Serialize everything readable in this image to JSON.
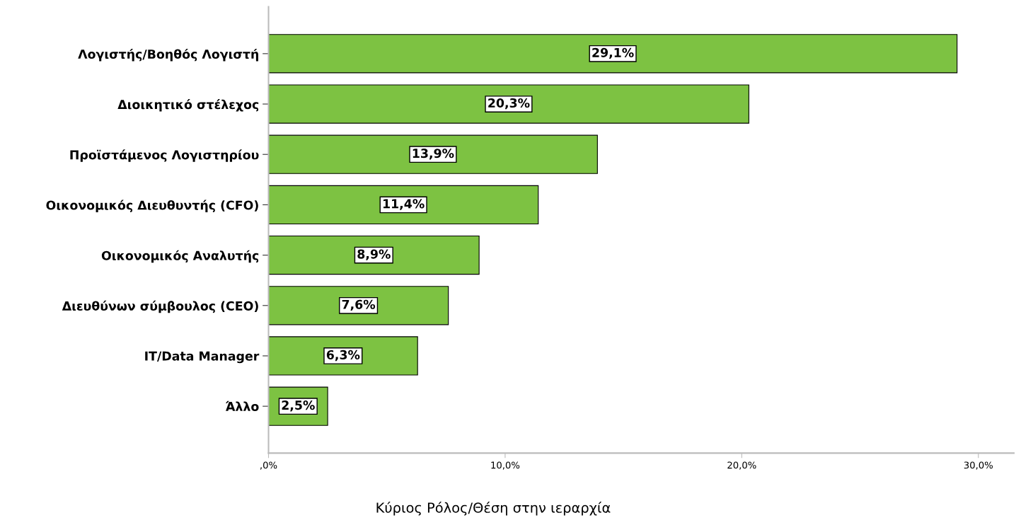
{
  "chart_data": {
    "type": "bar",
    "orientation": "horizontal",
    "xlabel": "Κύριος Ρόλος/Θέση στην ιεραρχία",
    "categories": [
      "Λογιστής/Βοηθός Λογιστή",
      "Διοικητικό στέλεχος",
      "Προϊστάμενος Λογιστηρίου",
      "Οικονομικός Διευθυντής (CFO)",
      "Οικονομικός Αναλυτής",
      "Διευθύνων σύμβουλος (CEO)",
      "IT/Data Manager",
      "Άλλο"
    ],
    "values": [
      29.1,
      20.3,
      13.9,
      11.4,
      8.9,
      7.6,
      6.3,
      2.5
    ],
    "value_labels": [
      "29,1%",
      "20,3%",
      "13,9%",
      "11,4%",
      "8,9%",
      "7,6%",
      "6,3%",
      "2,5%"
    ],
    "color": "#7dc242",
    "xlim": [
      0,
      31.5
    ],
    "xticks": [
      {
        "value": 0,
        "label": ",0%"
      },
      {
        "value": 10,
        "label": "10,0%"
      },
      {
        "value": 20,
        "label": "20,0%"
      },
      {
        "value": 30,
        "label": "30,0%"
      }
    ],
    "grid": false,
    "legend": false
  }
}
